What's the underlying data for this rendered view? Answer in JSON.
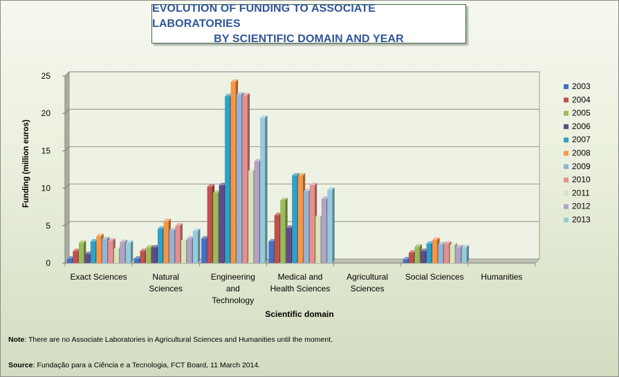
{
  "chart_data": {
    "type": "bar",
    "title": [
      "EVOLUTION OF FUNDING TO ASSOCIATE LABORATORIES",
      "BY SCIENTIFIC DOMAIN AND YEAR"
    ],
    "xlabel": "Scientific domain",
    "ylabel": "Funding (million euros)",
    "ylim": [
      0,
      25
    ],
    "yticks": [
      0,
      5,
      10,
      15,
      20,
      25
    ],
    "grid": true,
    "legend_position": "right",
    "categories": [
      [
        "Exact Sciences"
      ],
      [
        "Natural",
        "Sciences"
      ],
      [
        "Engineering",
        "and",
        "Technology"
      ],
      [
        "Medical and",
        "Health Sciences"
      ],
      [
        "Agricultural",
        "Sciences"
      ],
      [
        "Social Sciences"
      ],
      [
        "Humanities"
      ]
    ],
    "series": [
      {
        "name": "2003",
        "color": "#4472c4",
        "values": [
          0.6,
          0.6,
          3.3,
          2.9,
          0,
          0.5,
          0
        ]
      },
      {
        "name": "2004",
        "color": "#c0504d",
        "values": [
          1.6,
          1.6,
          10.2,
          6.4,
          0,
          1.4,
          0
        ]
      },
      {
        "name": "2005",
        "color": "#9bbb59",
        "values": [
          2.7,
          2.1,
          9.4,
          8.4,
          0,
          2.2,
          0
        ]
      },
      {
        "name": "2006",
        "color": "#604a8b",
        "values": [
          1.2,
          2.1,
          10.4,
          4.7,
          0,
          1.6,
          0
        ]
      },
      {
        "name": "2007",
        "color": "#31a0c4",
        "values": [
          2.9,
          4.6,
          22.3,
          11.7,
          0,
          2.6,
          0
        ]
      },
      {
        "name": "2008",
        "color": "#f79646",
        "values": [
          3.6,
          5.6,
          24.2,
          11.7,
          0,
          3.1,
          0
        ]
      },
      {
        "name": "2009",
        "color": "#95b3d7",
        "values": [
          3.2,
          4.4,
          22.5,
          9.6,
          0,
          2.5,
          0
        ]
      },
      {
        "name": "2010",
        "color": "#e6908e",
        "values": [
          3.0,
          5.0,
          22.4,
          10.4,
          0,
          2.6,
          0
        ]
      },
      {
        "name": "2011",
        "color": "#d7e4bd",
        "values": [
          1.9,
          3.0,
          12.3,
          6.2,
          0,
          2.4,
          0
        ]
      },
      {
        "name": "2012",
        "color": "#b3a2c7",
        "values": [
          2.8,
          3.3,
          13.6,
          8.6,
          0,
          2.1,
          0
        ]
      },
      {
        "name": "2013",
        "color": "#93cddd",
        "values": [
          2.7,
          4.3,
          19.4,
          9.8,
          0,
          2.1,
          0
        ]
      }
    ]
  },
  "notes": {
    "note_label": "Note",
    "note_text": ": There are no Associate Laboratories in Agricultural Sciences and Humanities until the moment.",
    "source_label": "Source",
    "source_text": ": Fundação para a Ciência e a Tecnologia, FCT Board, 11 March 2014."
  }
}
